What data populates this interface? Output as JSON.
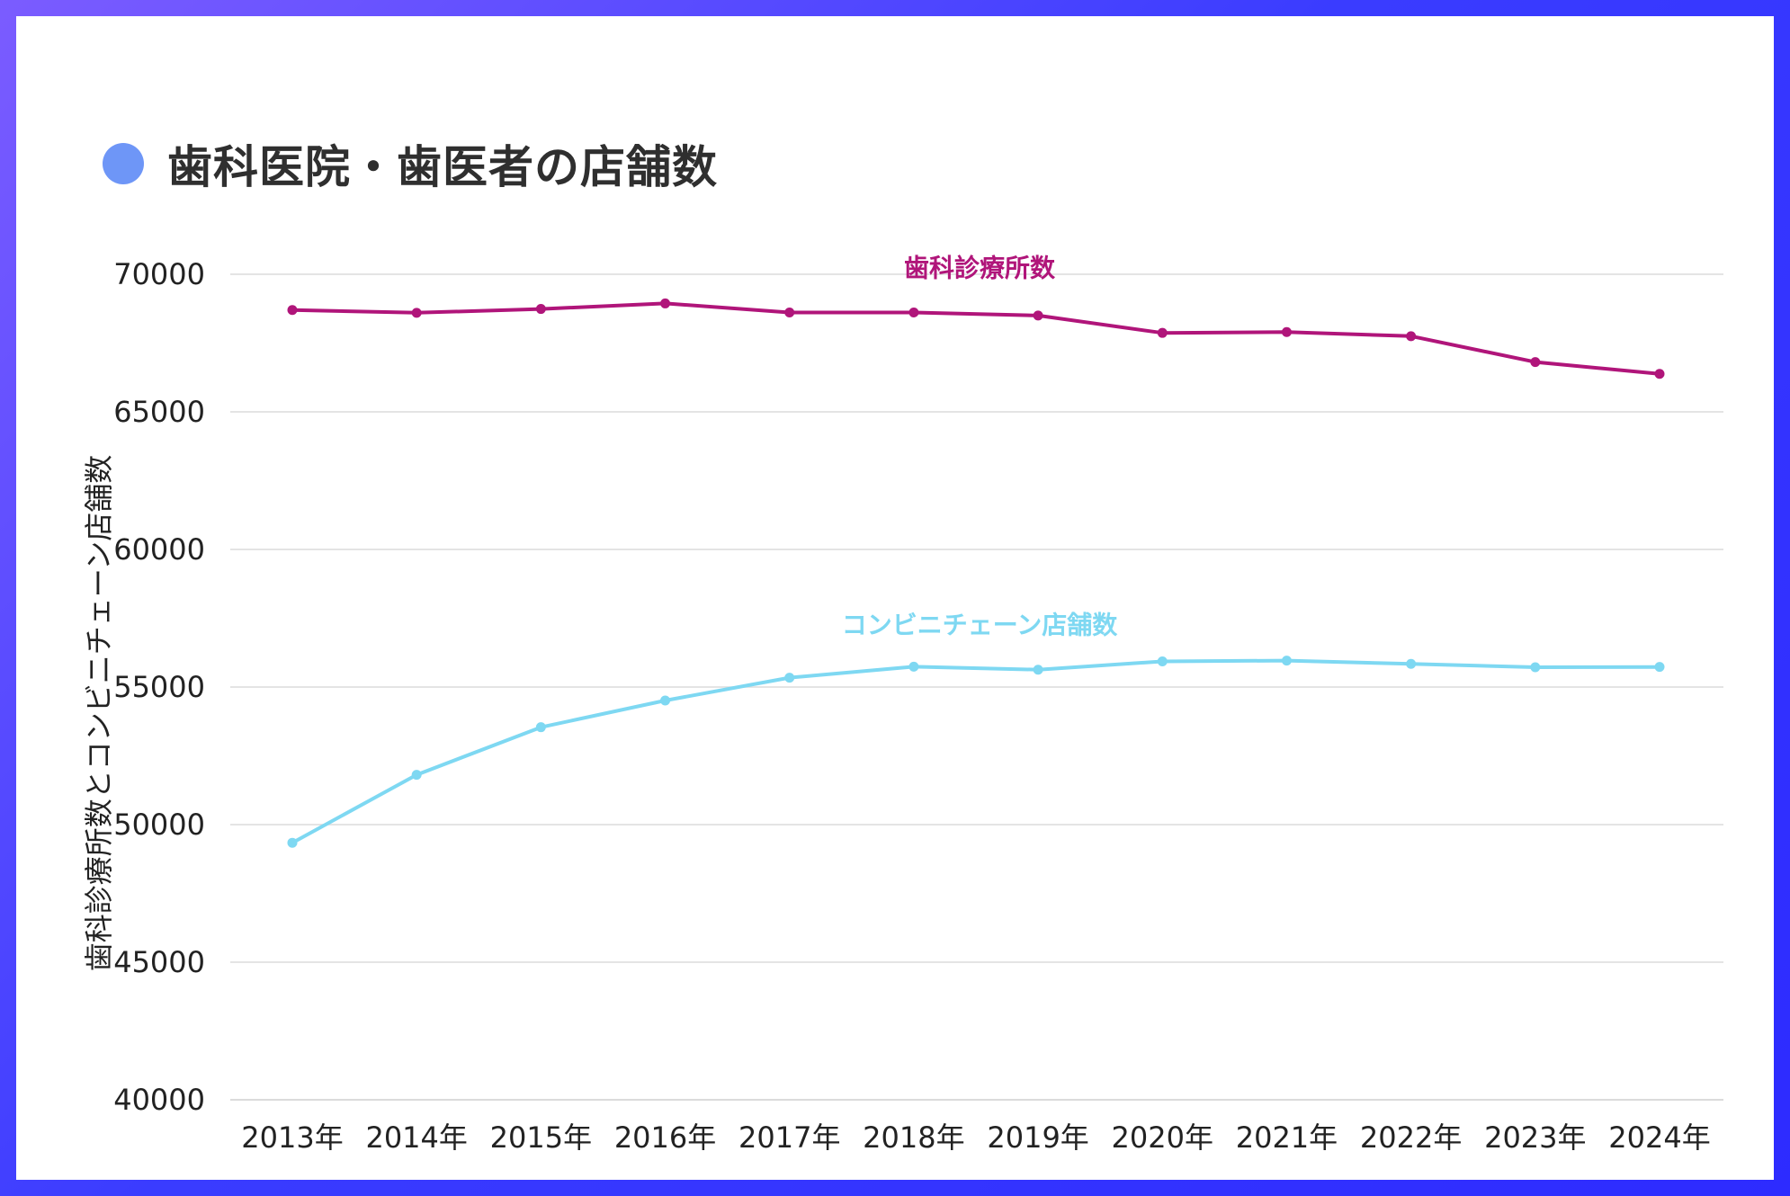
{
  "header": {
    "title": "歯科医院・歯医者の店舗数",
    "accent_color": "#6e96f7"
  },
  "chart_data": {
    "type": "line",
    "title": "歯科医院・歯医者の店舗数",
    "xlabel": "",
    "ylabel": "歯科診療所数とコンビニチェーン店舗数",
    "ylim": [
      40000,
      70000
    ],
    "yticks": [
      40000,
      45000,
      50000,
      55000,
      60000,
      65000,
      70000
    ],
    "grid": true,
    "categories": [
      "2013年",
      "2014年",
      "2015年",
      "2016年",
      "2017年",
      "2018年",
      "2019年",
      "2020年",
      "2021年",
      "2022年",
      "2023年",
      "2024年"
    ],
    "series": [
      {
        "name": "歯科診療所数",
        "color": "#b0157a",
        "values": [
          68700,
          68600,
          68740,
          68940,
          68610,
          68610,
          68500,
          67870,
          67900,
          67750,
          66810,
          66380
        ]
      },
      {
        "name": "コンビニチェーン店舗数",
        "color": "#7ed8f2",
        "values": [
          49340,
          51810,
          53540,
          54510,
          55340,
          55740,
          55630,
          55930,
          55960,
          55840,
          55720,
          55730
        ]
      }
    ]
  }
}
